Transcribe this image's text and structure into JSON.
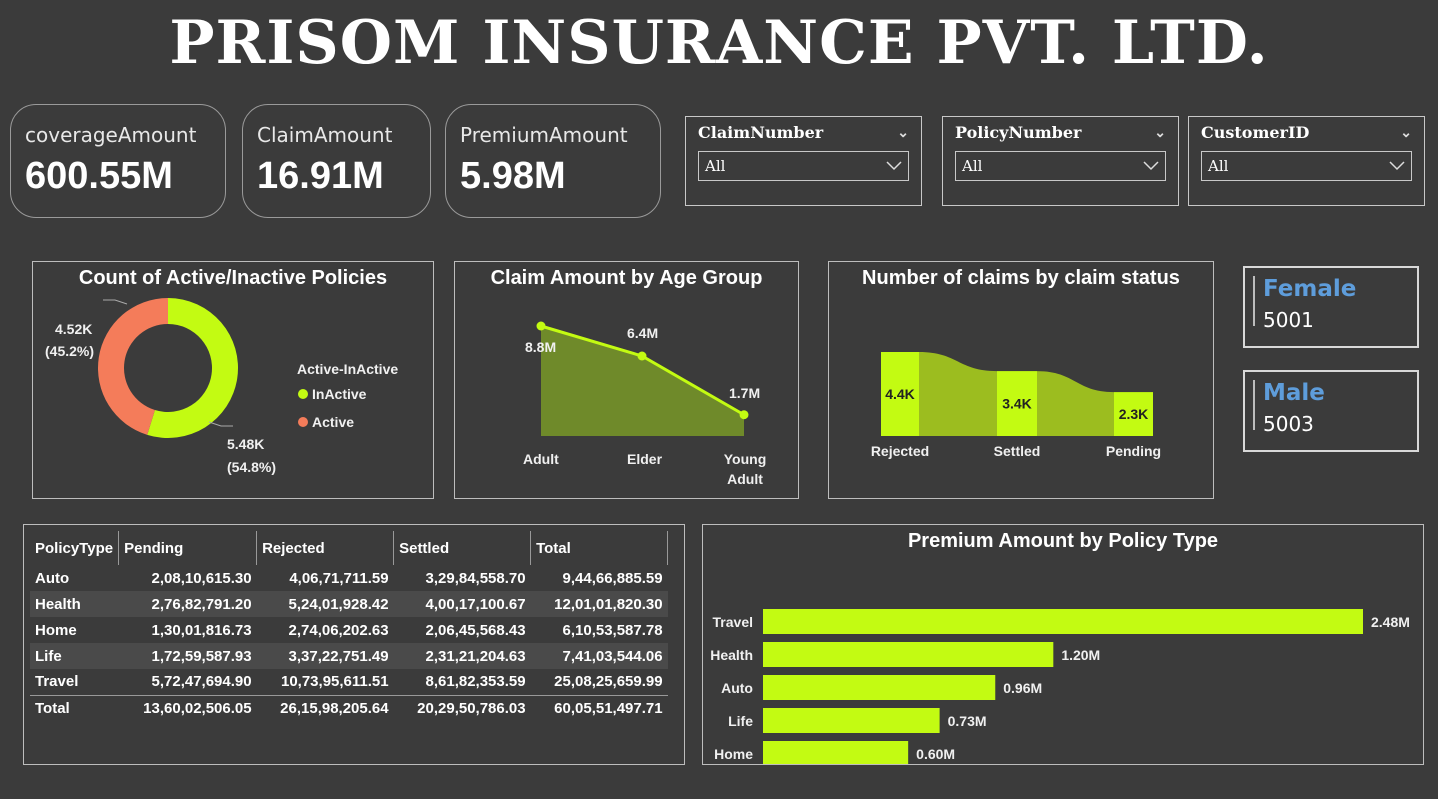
{
  "header": {
    "title": "PRISOM INSURANCE PVT. LTD."
  },
  "kpis": [
    {
      "label": "coverageAmount",
      "value": "600.55M"
    },
    {
      "label": "ClaimAmount",
      "value": "16.91M"
    },
    {
      "label": "PremiumAmount",
      "value": "5.98M"
    }
  ],
  "slicers": [
    {
      "label": "ClaimNumber",
      "value": "All"
    },
    {
      "label": "PolicyNumber",
      "value": "All"
    },
    {
      "label": "CustomerID",
      "value": "All"
    }
  ],
  "gender": {
    "female": {
      "label": "Female",
      "value": "5001"
    },
    "male": {
      "label": "Male",
      "value": "5003"
    }
  },
  "colors": {
    "accent": "#c3fb12",
    "active": "#f47c5a",
    "area": "#6f8a2a",
    "ribbon": "#9cbd1f",
    "gender_label": "#5e9ddb"
  },
  "chart_data": [
    {
      "type": "pie",
      "title": "Count of Active/Inactive Policies",
      "legend_title": "Active-InActive",
      "legend_position": "right",
      "categories": [
        "InActive",
        "Active"
      ],
      "values": [
        5480,
        4520
      ],
      "labels": [
        "5.48K",
        "4.52K"
      ],
      "percent_labels": [
        "(54.8%)",
        "(45.2%)"
      ]
    },
    {
      "type": "area",
      "title": "Claim Amount by Age Group",
      "categories": [
        "Adult",
        "Elder",
        "Young Adult"
      ],
      "values": [
        8.8,
        6.4,
        1.7
      ],
      "labels": [
        "8.8M",
        "6.4M",
        "1.7M"
      ],
      "unit": "M"
    },
    {
      "type": "bar",
      "title": "Number of claims by claim status",
      "categories": [
        "Rejected",
        "Settled",
        "Pending"
      ],
      "values": [
        4.4,
        3.4,
        2.3
      ],
      "labels": [
        "4.4K",
        "3.4K",
        "2.3K"
      ],
      "unit": "K"
    },
    {
      "type": "table",
      "columns": [
        "PolicyType",
        "Pending",
        "Rejected",
        "Settled",
        "Total"
      ],
      "rows": [
        [
          "Auto",
          "2,08,10,615.30",
          "4,06,71,711.59",
          "3,29,84,558.70",
          "9,44,66,885.59"
        ],
        [
          "Health",
          "2,76,82,791.20",
          "5,24,01,928.42",
          "4,00,17,100.67",
          "12,01,01,820.30"
        ],
        [
          "Home",
          "1,30,01,816.73",
          "2,74,06,202.63",
          "2,06,45,568.43",
          "6,10,53,587.78"
        ],
        [
          "Life",
          "1,72,59,587.93",
          "3,37,22,751.49",
          "2,31,21,204.63",
          "7,41,03,544.06"
        ],
        [
          "Travel",
          "5,72,47,694.90",
          "10,73,95,611.51",
          "8,61,82,353.59",
          "25,08,25,659.99"
        ],
        [
          "Total",
          "13,60,02,506.05",
          "26,15,98,205.64",
          "20,29,50,786.03",
          "60,05,51,497.71"
        ]
      ]
    },
    {
      "type": "bar",
      "orientation": "horizontal",
      "title": "Premium Amount by Policy Type",
      "categories": [
        "Travel",
        "Health",
        "Auto",
        "Life",
        "Home"
      ],
      "values": [
        2.48,
        1.2,
        0.96,
        0.73,
        0.6
      ],
      "labels": [
        "2.48M",
        "1.20M",
        "0.96M",
        "0.73M",
        "0.60M"
      ],
      "unit": "M"
    }
  ]
}
